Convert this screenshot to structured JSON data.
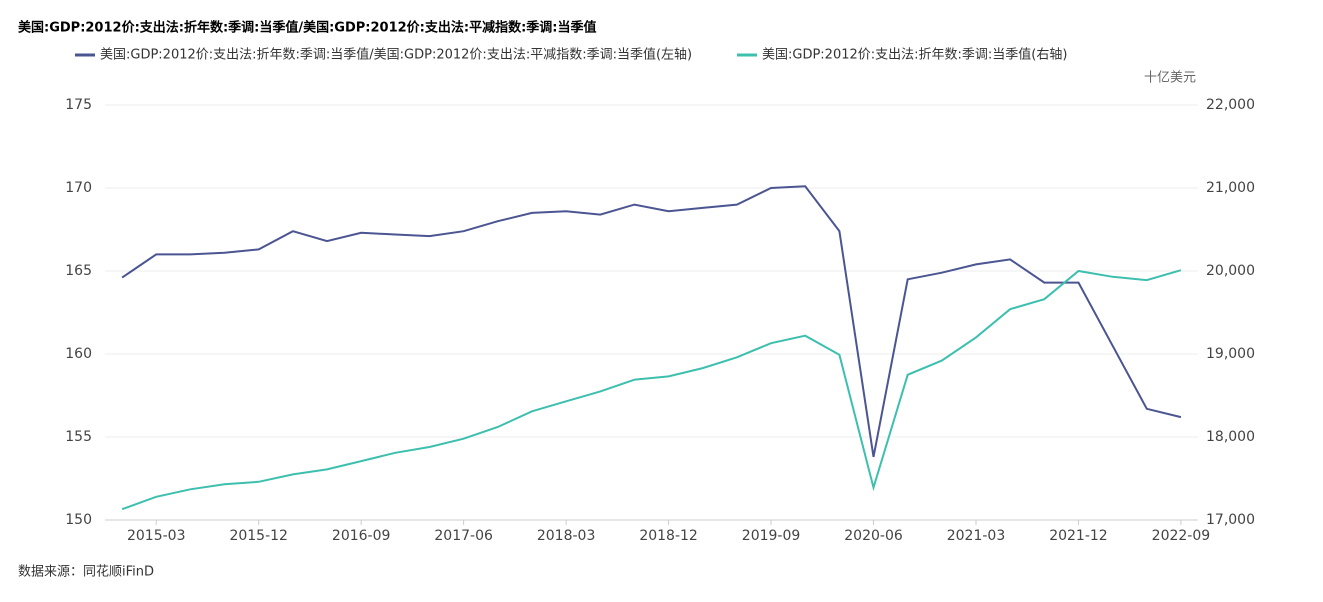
{
  "chart_data": {
    "type": "line",
    "title": "美国:GDP:2012价:支出法:折年数:季调:当季值/美国:GDP:2012价:支出法:平减指数:季调:当季值",
    "y2_label": "十亿美元",
    "source": "数据来源：同花顺iFinD",
    "categories": [
      null,
      "2015-03",
      null,
      null,
      "2015-12",
      null,
      null,
      "2016-09",
      null,
      null,
      "2017-06",
      null,
      null,
      "2018-03",
      null,
      null,
      "2018-12",
      null,
      null,
      "2019-09",
      null,
      null,
      "2020-06",
      null,
      null,
      "2021-03",
      null,
      null,
      "2021-12",
      null,
      null,
      "2022-09"
    ],
    "series": [
      {
        "name": "美国:GDP:2012价:支出法:折年数:季调:当季值/美国:GDP:2012价:支出法:平减指数:季调:当季值(左轴)",
        "color": "#4a5592",
        "axis": "y",
        "values": [
          164.6,
          166.0,
          166.0,
          166.1,
          166.3,
          167.4,
          166.8,
          167.3,
          167.2,
          167.1,
          167.4,
          168.0,
          168.5,
          168.6,
          168.4,
          169.0,
          168.6,
          168.8,
          169.0,
          170.0,
          170.1,
          167.4,
          153.8,
          164.5,
          164.9,
          165.4,
          165.7,
          164.3,
          164.3,
          160.5,
          156.7,
          156.2
        ]
      },
      {
        "name": "美国:GDP:2012价:支出法:折年数:季调:当季值(右轴)",
        "color": "#3dbfae",
        "axis": "y2",
        "values": [
          17130,
          17280,
          17370,
          17430,
          17460,
          17550,
          17610,
          17710,
          17810,
          17880,
          17980,
          18120,
          18310,
          18430,
          18550,
          18690,
          18730,
          18830,
          18960,
          19130,
          19220,
          18990,
          17390,
          18750,
          18920,
          19200,
          19540,
          19660,
          20000,
          19930,
          19890,
          20010
        ]
      }
    ],
    "ylim": [
      150,
      175
    ],
    "yticks": [
      150,
      155,
      160,
      165,
      170,
      175
    ],
    "y2lim": [
      17000,
      22000
    ],
    "y2ticks": [
      {
        "value": 17000,
        "label": "17,000"
      },
      {
        "value": 18000,
        "label": "18,000"
      },
      {
        "value": 19000,
        "label": "19,000"
      },
      {
        "value": 20000,
        "label": "20,000"
      },
      {
        "value": 21000,
        "label": "21,000"
      },
      {
        "value": 22000,
        "label": "22,000"
      }
    ],
    "grid": true,
    "legend": "top-left"
  }
}
